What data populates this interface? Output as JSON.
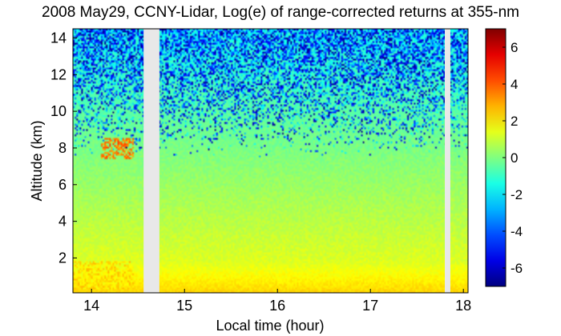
{
  "chart_data": {
    "type": "heatmap",
    "title": "2008 May29, CCNY-Lidar, Log(e) of range-corrected returns at 355-nm",
    "xlabel": "Local time (hour)",
    "ylabel": "Altitude (km)",
    "xlim": [
      13.8,
      18.05
    ],
    "ylim": [
      0.1,
      14.5
    ],
    "xticks": [
      14,
      15,
      16,
      17,
      18
    ],
    "yticks": [
      2,
      4,
      6,
      8,
      10,
      12,
      14
    ],
    "data_gaps_hours": [
      [
        14.56,
        14.73
      ],
      [
        17.8,
        17.86
      ]
    ],
    "features": [
      {
        "label": "aerosol layer",
        "x_range": [
          13.8,
          14.45
        ],
        "altitude_km": [
          0.3,
          1.8
        ],
        "value_range": [
          1.5,
          2.8
        ]
      },
      {
        "label": "cloud",
        "x_range": [
          14.1,
          14.45
        ],
        "altitude_km": [
          7.4,
          8.5
        ],
        "value_range": [
          2.5,
          4.5
        ]
      }
    ],
    "z_label": "Log(e)",
    "colorbar": {
      "range": [
        -7,
        7
      ],
      "ticks": [
        6,
        4,
        2,
        0,
        -2,
        -4,
        -6
      ],
      "colormap": "jet",
      "colors": [
        "#00008f",
        "#0000ff",
        "#00ffff",
        "#ffff00",
        "#ff0000",
        "#800000"
      ]
    },
    "grid": false
  }
}
